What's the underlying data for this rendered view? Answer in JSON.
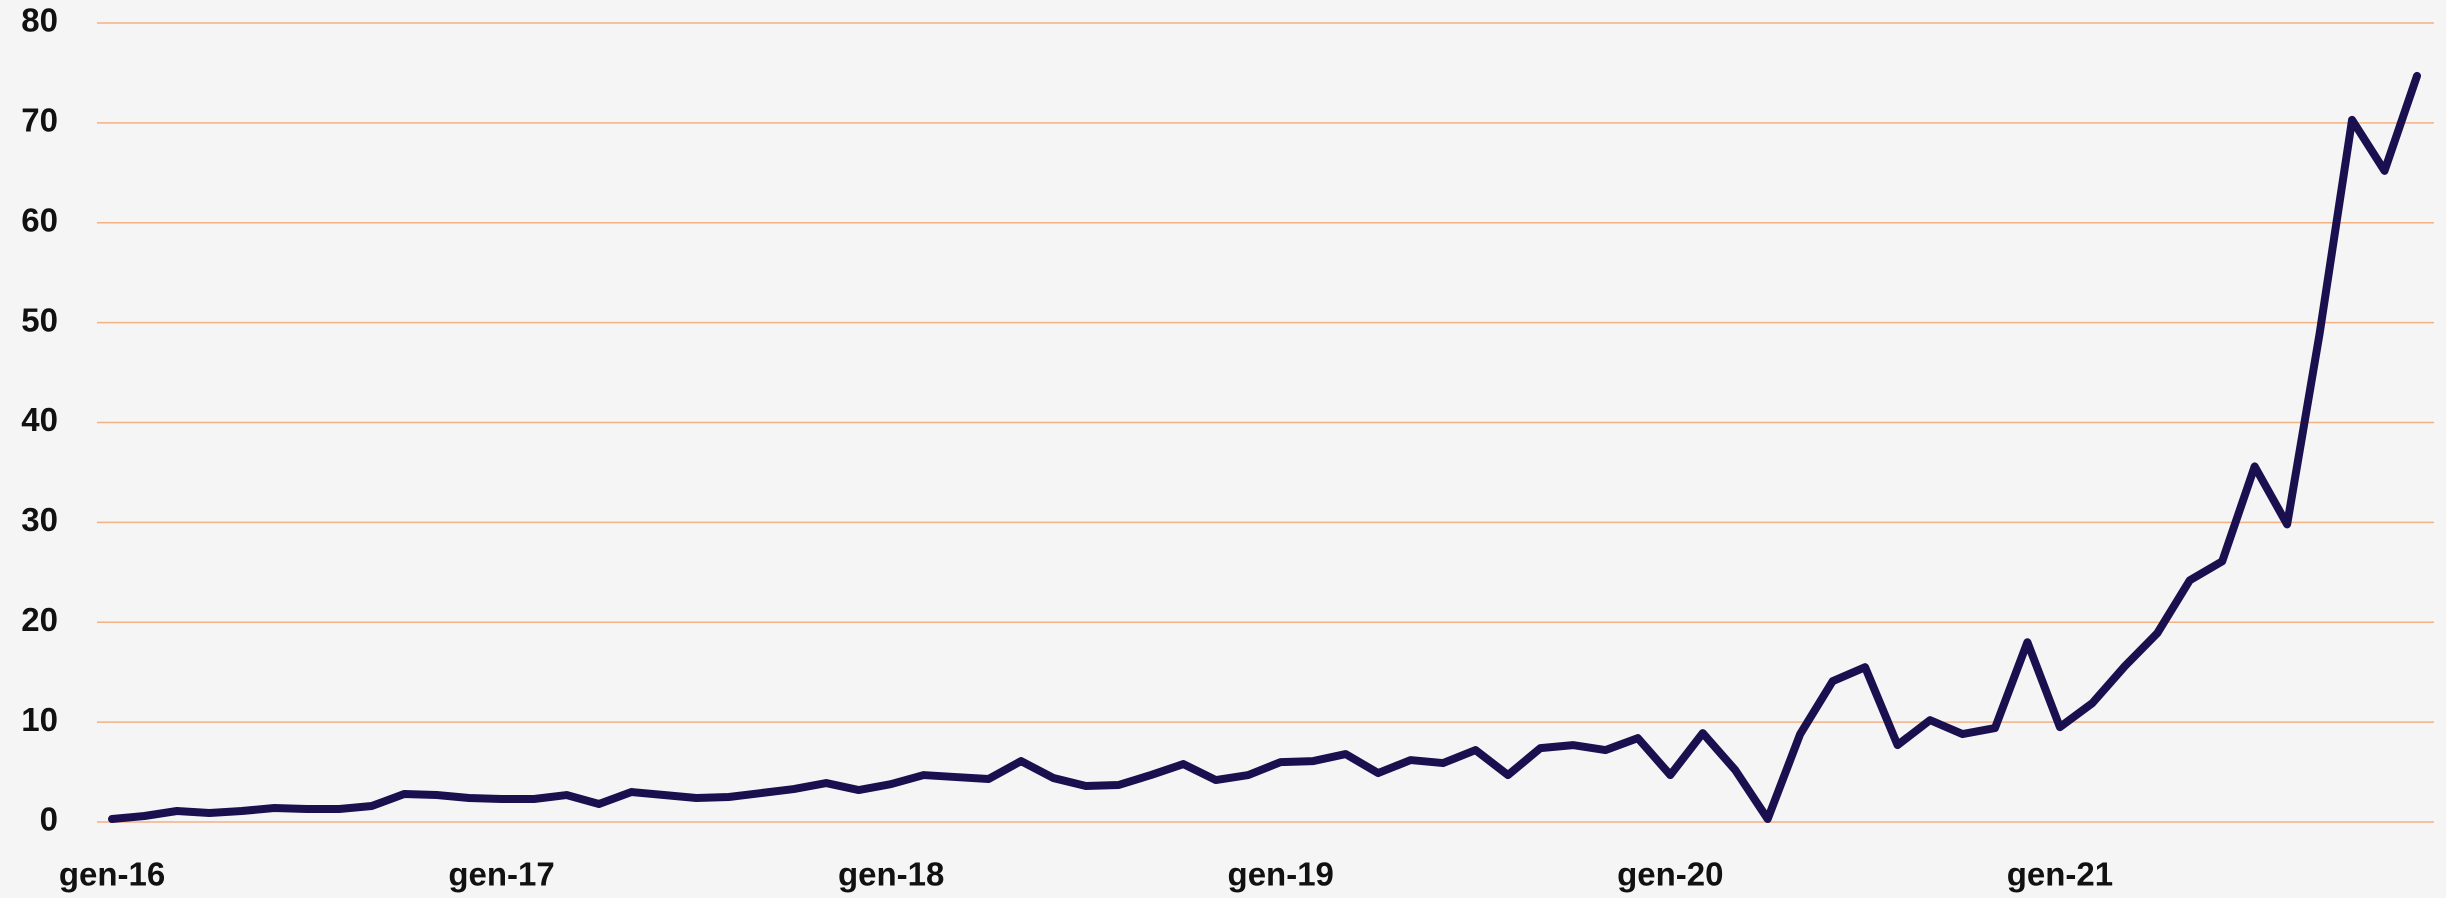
{
  "chart_data": {
    "type": "line",
    "categories": [
      "gen-16",
      null,
      null,
      null,
      null,
      null,
      null,
      null,
      null,
      null,
      null,
      null,
      "gen-17",
      null,
      null,
      null,
      null,
      null,
      null,
      null,
      null,
      null,
      null,
      null,
      "gen-18",
      null,
      null,
      null,
      null,
      null,
      null,
      null,
      null,
      null,
      null,
      null,
      "gen-19",
      null,
      null,
      null,
      null,
      null,
      null,
      null,
      null,
      null,
      null,
      null,
      "gen-20",
      null,
      null,
      null,
      null,
      null,
      null,
      null,
      null,
      null,
      null,
      null,
      "gen-21",
      null,
      null,
      null,
      null,
      null,
      null,
      null,
      null,
      null,
      null,
      null
    ],
    "series": [
      {
        "color": "#1a1050",
        "values": [
          0.3,
          0.6,
          1.1,
          0.9,
          1.1,
          1.4,
          1.3,
          1.3,
          1.6,
          2.8,
          2.7,
          2.4,
          2.3,
          2.3,
          2.7,
          1.8,
          3.0,
          2.7,
          2.4,
          2.5,
          2.9,
          3.3,
          3.9,
          3.2,
          3.8,
          4.7,
          4.5,
          4.3,
          6.1,
          4.4,
          3.6,
          3.7,
          4.7,
          5.8,
          4.2,
          4.7,
          6.0,
          6.1,
          6.8,
          4.9,
          6.2,
          5.9,
          7.2,
          4.7,
          7.4,
          7.7,
          7.2,
          8.4,
          4.7,
          8.9,
          5.2,
          0.3,
          8.8,
          14.1,
          15.5,
          7.7,
          10.2,
          8.8,
          9.4,
          18.0,
          9.5,
          11.9,
          15.6,
          18.9,
          24.2,
          26.1,
          35.6,
          29.8,
          48.9,
          70.3,
          65.2,
          74.7
        ]
      }
    ],
    "ylim": [
      0,
      80
    ],
    "yticks": [
      0,
      10,
      20,
      30,
      40,
      50,
      60,
      70,
      80
    ],
    "grid": true
  }
}
